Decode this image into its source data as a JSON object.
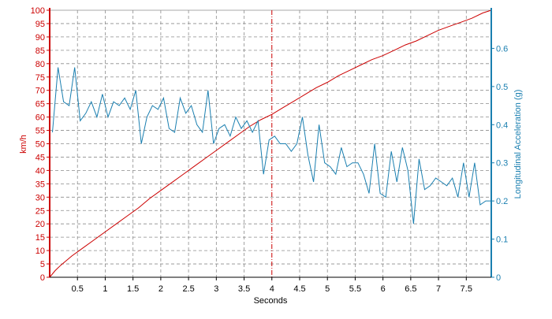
{
  "colors": {
    "speed": "#cc0000",
    "accel": "#1a7fb0",
    "grid": "#8c8c8c",
    "marker": "#cc0000",
    "text": "#000000"
  },
  "chart_data": {
    "type": "line",
    "title": "",
    "xlabel": "Seconds",
    "ylabel_left": "km/h",
    "ylabel_right": "Longitudinal Acceleration (g)",
    "xlim": [
      0,
      7.95
    ],
    "ylim_left": [
      0,
      100
    ],
    "ylim_right": [
      0,
      0.7
    ],
    "grid": true,
    "legend": "none",
    "vertical_marker_x": 4.0,
    "x_ticks": [
      "0.5",
      "1",
      "1.5",
      "2",
      "2.5",
      "3",
      "3.5",
      "4",
      "4.5",
      "5",
      "5.5",
      "6",
      "6.5",
      "7",
      "7.5"
    ],
    "x_tick_values": [
      0.5,
      1,
      1.5,
      2,
      2.5,
      3,
      3.5,
      4,
      4.5,
      5,
      5.5,
      6,
      6.5,
      7,
      7.5
    ],
    "y_left_ticks": [
      "0",
      "5",
      "10",
      "15",
      "20",
      "25",
      "30",
      "35",
      "40",
      "45",
      "50",
      "55",
      "60",
      "65",
      "70",
      "75",
      "80",
      "85",
      "90",
      "95",
      "100"
    ],
    "y_left_tick_values": [
      0,
      5,
      10,
      15,
      20,
      25,
      30,
      35,
      40,
      45,
      50,
      55,
      60,
      65,
      70,
      75,
      80,
      85,
      90,
      95,
      100
    ],
    "y_right_ticks": [
      "0",
      "0.1",
      "0.2",
      "0.3",
      "0.4",
      "0.5",
      "0.6"
    ],
    "y_right_tick_values": [
      0,
      0.1,
      0.2,
      0.3,
      0.4,
      0.5,
      0.6
    ],
    "series": [
      {
        "axis": "left",
        "x": [
          0,
          0.1,
          0.2,
          0.4,
          0.6,
          0.8,
          1.0,
          1.2,
          1.4,
          1.6,
          1.8,
          2.0,
          2.2,
          2.4,
          2.6,
          2.8,
          3.0,
          3.2,
          3.4,
          3.6,
          3.8,
          4.0,
          4.2,
          4.4,
          4.6,
          4.8,
          5.0,
          5.2,
          5.4,
          5.6,
          5.8,
          6.0,
          6.2,
          6.4,
          6.6,
          6.8,
          7.0,
          7.2,
          7.4,
          7.6,
          7.8,
          7.95
        ],
        "values": [
          0,
          2.5,
          4.5,
          8.0,
          11.0,
          14.0,
          17.0,
          20.0,
          23.0,
          26.0,
          29.5,
          32.5,
          35.5,
          38.5,
          41.5,
          44.5,
          47.5,
          50.5,
          53.5,
          56.5,
          59.0,
          61.0,
          63.5,
          66.0,
          68.5,
          71.0,
          73.0,
          75.5,
          77.5,
          79.5,
          81.5,
          83.0,
          85.0,
          87.0,
          88.5,
          90.5,
          92.5,
          94.0,
          95.5,
          97.0,
          99.0,
          100.0
        ]
      },
      {
        "axis": "right",
        "x": [
          0.05,
          0.15,
          0.25,
          0.35,
          0.45,
          0.55,
          0.65,
          0.75,
          0.85,
          0.95,
          1.05,
          1.15,
          1.25,
          1.35,
          1.45,
          1.55,
          1.65,
          1.75,
          1.85,
          1.95,
          2.05,
          2.15,
          2.25,
          2.35,
          2.45,
          2.55,
          2.65,
          2.75,
          2.85,
          2.95,
          3.05,
          3.15,
          3.25,
          3.35,
          3.45,
          3.55,
          3.65,
          3.75,
          3.85,
          3.95,
          4.05,
          4.15,
          4.25,
          4.35,
          4.45,
          4.55,
          4.65,
          4.75,
          4.85,
          4.95,
          5.05,
          5.15,
          5.25,
          5.35,
          5.45,
          5.55,
          5.65,
          5.75,
          5.85,
          5.95,
          6.05,
          6.15,
          6.25,
          6.35,
          6.45,
          6.55,
          6.65,
          6.75,
          6.85,
          6.95,
          7.05,
          7.15,
          7.25,
          7.35,
          7.45,
          7.55,
          7.65,
          7.75,
          7.85,
          7.95
        ],
        "values": [
          0.38,
          0.55,
          0.46,
          0.45,
          0.55,
          0.41,
          0.43,
          0.46,
          0.42,
          0.48,
          0.42,
          0.46,
          0.45,
          0.47,
          0.44,
          0.49,
          0.35,
          0.42,
          0.45,
          0.44,
          0.47,
          0.39,
          0.38,
          0.47,
          0.43,
          0.45,
          0.4,
          0.38,
          0.49,
          0.35,
          0.39,
          0.4,
          0.37,
          0.42,
          0.39,
          0.41,
          0.38,
          0.41,
          0.27,
          0.36,
          0.37,
          0.35,
          0.35,
          0.33,
          0.35,
          0.42,
          0.32,
          0.25,
          0.4,
          0.3,
          0.29,
          0.27,
          0.34,
          0.29,
          0.3,
          0.3,
          0.27,
          0.22,
          0.35,
          0.22,
          0.21,
          0.33,
          0.25,
          0.34,
          0.28,
          0.14,
          0.31,
          0.23,
          0.24,
          0.26,
          0.25,
          0.24,
          0.26,
          0.21,
          0.3,
          0.21,
          0.3,
          0.19,
          0.2,
          0.2
        ]
      }
    ]
  }
}
